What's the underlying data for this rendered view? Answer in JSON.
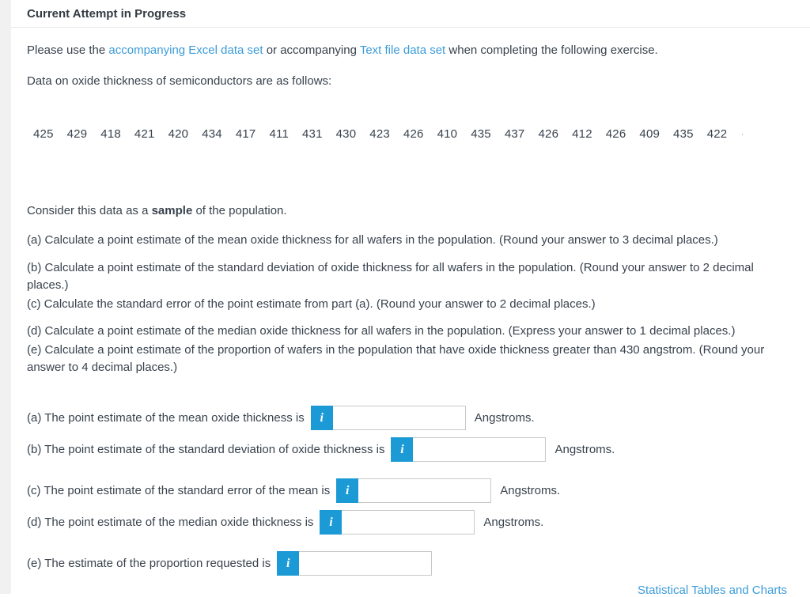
{
  "header": {
    "title": "Current Attempt in Progress"
  },
  "intro": {
    "text_1": "Please use the ",
    "excel_link": "accompanying Excel data set",
    "text_2": " or accompanying ",
    "text_file_link": "Text file data set",
    "text_3": " when completing the following exercise."
  },
  "data_statement": "Data on oxide thickness of semiconductors are as follows:",
  "data_values": [
    "425",
    "429",
    "418",
    "421",
    "420",
    "434",
    "417",
    "411",
    "431",
    "430",
    "423",
    "426",
    "410",
    "435",
    "437",
    "426",
    "412",
    "426",
    "409",
    "435",
    "422"
  ],
  "data_overflow_hint": "·",
  "sample_statement": {
    "text_1": "Consider this data as a ",
    "bold": "sample",
    "text_2": " of the population."
  },
  "questions": {
    "a": "(a) Calculate a point estimate of the mean oxide thickness for all wafers in the population. (Round your answer to 3 decimal places.)",
    "b": "(b) Calculate a point estimate of the standard deviation of oxide thickness for all wafers in the population. (Round your answer to 2 decimal places.)",
    "c": "(c) Calculate the standard error of the point estimate from part (a). (Round your answer to 2 decimal places.)",
    "d": "(d) Calculate a point estimate of the median oxide thickness for all wafers in the population. (Express your answer to 1 decimal places.)",
    "e": "(e) Calculate a point estimate of the proportion of wafers in the population that have oxide thickness greater than 430 angstrom. (Round your answer to 4 decimal places.)"
  },
  "answer_rows": [
    {
      "id": "a",
      "label": "(a) The point estimate of the mean oxide thickness is",
      "info_icon": "i",
      "value": "",
      "unit": "Angstroms."
    },
    {
      "id": "b",
      "label": "(b) The point estimate of the standard deviation of oxide thickness is",
      "info_icon": "i",
      "value": "",
      "unit": "Angstroms."
    },
    {
      "id": "c",
      "label": "(c) The point estimate of the standard error of the mean is",
      "info_icon": "i",
      "value": "",
      "unit": "Angstroms."
    },
    {
      "id": "d",
      "label": "(d) The point estimate of the median oxide thickness is",
      "info_icon": "i",
      "value": "",
      "unit": "Angstroms."
    },
    {
      "id": "e",
      "label": "(e) The estimate of the proportion requested is",
      "info_icon": "i",
      "value": "",
      "unit": ""
    }
  ],
  "footer": {
    "tables_link": "Statistical Tables and Charts"
  },
  "colors": {
    "link": "#3b9cd9",
    "info_button": "#1c9ad5",
    "text": "#38424d",
    "divider": "#e7e7e7",
    "input_border": "#c8c8c8",
    "page_strip": "#f1f1f1"
  }
}
